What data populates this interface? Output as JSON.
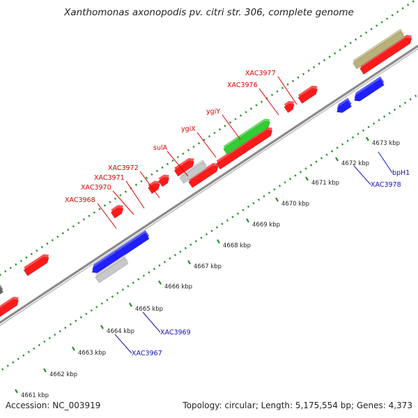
{
  "title": "Xanthomonas axonopodis pv. citri str. 306, complete genome",
  "footer": {
    "accession": "Accession: NC_003919",
    "summary": "Topology: circular; Length: 5,175,554 bp; Genes: 4,373"
  },
  "colors": {
    "backbone": "#8a8a8a",
    "dots": "#2f8f2f",
    "red": "#ff1a1a",
    "blue": "#1f1fff",
    "green": "#33cc33",
    "grey": "#c8c8c8",
    "darkgrey": "#666666",
    "olive": "#b8b27a",
    "label_red": "#e00000",
    "label_blue": "#1010c0"
  },
  "ruler": [
    {
      "label": "4661 kbp"
    },
    {
      "label": "4662 kbp"
    },
    {
      "label": "4663 kbp"
    },
    {
      "label": "4664 kbp"
    },
    {
      "label": "4665 kbp"
    },
    {
      "label": "4666 kbp"
    },
    {
      "label": "4667 kbp"
    },
    {
      "label": "4668 kbp"
    },
    {
      "label": "4669 kbp"
    },
    {
      "label": "4670 kbp"
    },
    {
      "label": "4671 kbp"
    },
    {
      "label": "4672 kbp"
    },
    {
      "label": "4673 kbp"
    }
  ],
  "genes": [
    {
      "name": "XAC3968",
      "side": "upper"
    },
    {
      "name": "XAC3970",
      "side": "upper"
    },
    {
      "name": "XAC3971",
      "side": "upper"
    },
    {
      "name": "XAC3972",
      "side": "upper"
    },
    {
      "name": "sulA",
      "side": "upper"
    },
    {
      "name": "ygiX",
      "side": "upper"
    },
    {
      "name": "ygiY",
      "side": "upper"
    },
    {
      "name": "XAC3976",
      "side": "upper"
    },
    {
      "name": "XAC3977",
      "side": "upper"
    },
    {
      "name": "XAC3967",
      "side": "lower"
    },
    {
      "name": "XAC3969",
      "side": "lower"
    },
    {
      "name": "XAC3978",
      "side": "lower"
    },
    {
      "name": "bpH1",
      "side": "lower"
    }
  ]
}
